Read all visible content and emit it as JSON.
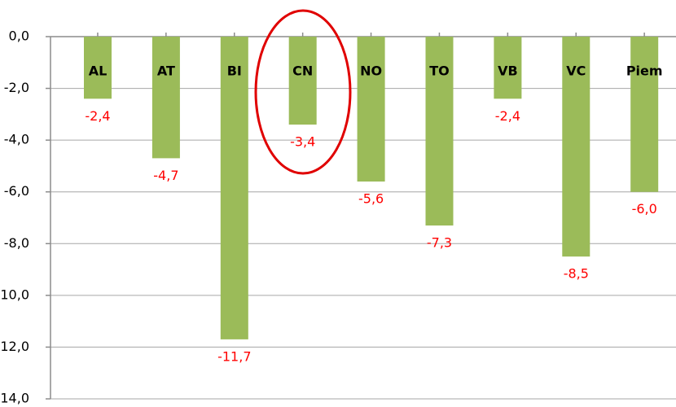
{
  "chart_data": {
    "type": "bar",
    "categories": [
      "AL",
      "AT",
      "BI",
      "CN",
      "NO",
      "TO",
      "VB",
      "VC",
      "Piem"
    ],
    "values": [
      -2.4,
      -4.7,
      -11.7,
      -3.4,
      -5.6,
      -7.3,
      -2.4,
      -8.5,
      -6.0
    ],
    "value_labels": [
      "-2,4",
      "-4,7",
      "-11,7",
      "-3,4",
      "-5,6",
      "-7,3",
      "-2,4",
      "-8,5",
      "-6,0"
    ],
    "color": "#9bbb59",
    "label_color": "#ff0000",
    "ylim": [
      -14,
      0
    ],
    "yticks": [
      {
        "value": 0,
        "label": "0,0"
      },
      {
        "value": -2,
        "label": "-2,0"
      },
      {
        "value": -4,
        "label": "-4,0"
      },
      {
        "value": -6,
        "label": "-6,0"
      },
      {
        "value": -8,
        "label": "-8,0"
      },
      {
        "value": -10,
        "label": "-10,0"
      },
      {
        "value": -12,
        "label": "-12,0"
      },
      {
        "value": -14,
        "label": "-14,0"
      }
    ],
    "grid": true
  }
}
